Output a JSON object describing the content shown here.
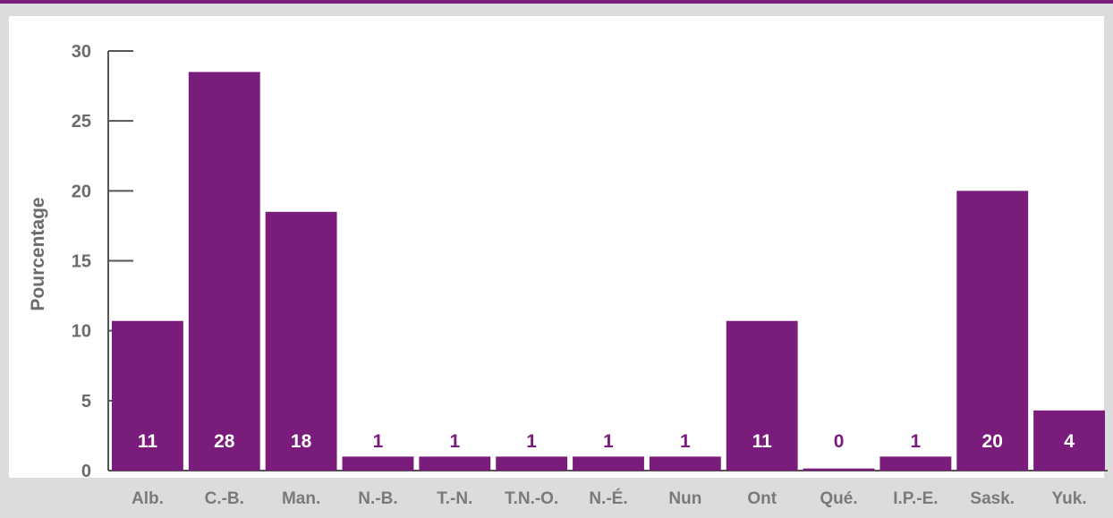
{
  "colors": {
    "bar": "#7a1c7c",
    "plot_background": "#ffffff",
    "page_background": "#dcdcdc",
    "axis": "#555555",
    "value_label_inside": "#ffffff",
    "value_label_outside": "#7a1c7c",
    "top_rule": "#7a1c7c"
  },
  "chart_data": {
    "type": "bar",
    "title": "",
    "xlabel": "",
    "ylabel": "Pourcentage",
    "ylim": [
      0,
      30
    ],
    "yticks": [
      0,
      5,
      10,
      15,
      20,
      25,
      30
    ],
    "grid": false,
    "legend": "none",
    "categories": [
      "Alb.",
      "C.-B.",
      "Man.",
      "N.-B.",
      "T.-N.",
      "T.N.-O.",
      "N.-É.",
      "Nun",
      "Ont",
      "Qué.",
      "I.P.-E.",
      "Sask.",
      "Yuk."
    ],
    "values": [
      10.7,
      28.5,
      18.5,
      1,
      1,
      1,
      1,
      1,
      10.7,
      0.15,
      1,
      20,
      4.3
    ],
    "data_labels": [
      "11",
      "28",
      "18",
      "1",
      "1",
      "1",
      "1",
      "1",
      "11",
      "0",
      "1",
      "20",
      "4"
    ]
  }
}
